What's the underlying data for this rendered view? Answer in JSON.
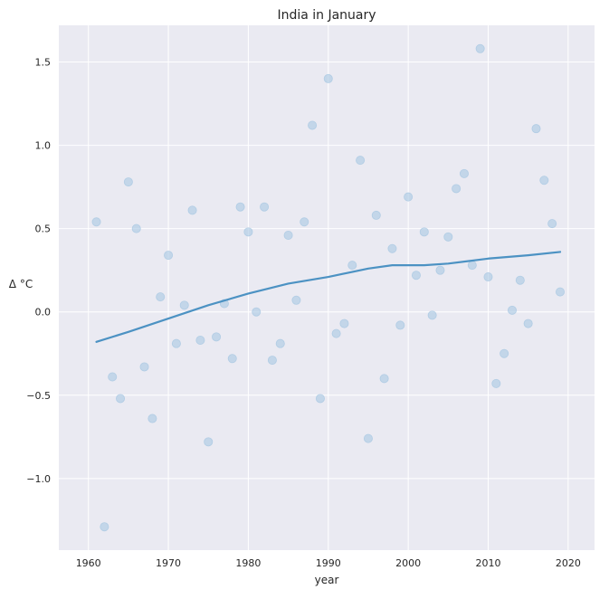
{
  "chart_data": {
    "type": "scatter",
    "title": "India in January",
    "xlabel": "year",
    "ylabel": "Δ °C",
    "xlim": [
      1956.3,
      2023.3
    ],
    "ylim": [
      -1.43,
      1.72
    ],
    "xticks": [
      1960,
      1970,
      1980,
      1990,
      2000,
      2010,
      2020
    ],
    "yticks": [
      -1.0,
      -0.5,
      0.0,
      0.5,
      1.0,
      1.5
    ],
    "xtick_labels": [
      "1960",
      "1970",
      "1980",
      "1990",
      "2000",
      "2010",
      "2020"
    ],
    "ytick_labels": [
      "−1.0",
      "−0.5",
      "0.0",
      "0.5",
      "1.0",
      "1.5"
    ],
    "grid": true,
    "colors": {
      "background": "#eaeaf2",
      "grid": "#ffffff",
      "points": "#a9c8e2",
      "trend": "#4c92c3"
    },
    "series": [
      {
        "kind": "scatter",
        "x": [
          1961,
          1962,
          1963,
          1964,
          1965,
          1966,
          1967,
          1968,
          1969,
          1970,
          1971,
          1972,
          1973,
          1974,
          1975,
          1976,
          1977,
          1978,
          1979,
          1980,
          1981,
          1982,
          1983,
          1984,
          1985,
          1986,
          1987,
          1988,
          1989,
          1990,
          1991,
          1992,
          1993,
          1994,
          1995,
          1996,
          1997,
          1998,
          1999,
          2000,
          2001,
          2002,
          2003,
          2004,
          2005,
          2006,
          2007,
          2008,
          2009,
          2010,
          2011,
          2012,
          2013,
          2014,
          2015,
          2016,
          2017,
          2018,
          2019
        ],
        "y": [
          0.54,
          -1.29,
          -0.39,
          -0.52,
          0.78,
          0.5,
          -0.33,
          -0.64,
          0.09,
          0.34,
          -0.19,
          0.04,
          0.61,
          -0.17,
          -0.78,
          -0.15,
          0.05,
          -0.28,
          0.63,
          0.48,
          0.0,
          0.63,
          -0.29,
          -0.19,
          0.46,
          0.07,
          0.54,
          1.12,
          -0.52,
          1.4,
          -0.13,
          -0.07,
          0.28,
          0.91,
          -0.76,
          0.58,
          -0.4,
          0.38,
          -0.08,
          0.69,
          0.22,
          0.48,
          -0.02,
          0.25,
          0.45,
          0.74,
          0.83,
          0.28,
          1.58,
          0.21,
          -0.43,
          -0.25,
          0.01,
          0.19,
          -0.07,
          1.1,
          0.79,
          0.53,
          0.12
        ]
      },
      {
        "kind": "line",
        "x": [
          1961,
          1965,
          1970,
          1975,
          1980,
          1985,
          1990,
          1995,
          1998,
          2002,
          2005,
          2010,
          2015,
          2019
        ],
        "y": [
          -0.18,
          -0.12,
          -0.04,
          0.04,
          0.11,
          0.17,
          0.21,
          0.26,
          0.28,
          0.28,
          0.29,
          0.32,
          0.34,
          0.36
        ]
      }
    ]
  }
}
